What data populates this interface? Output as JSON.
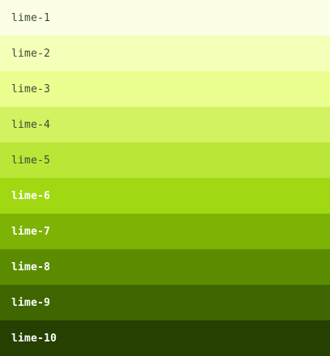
{
  "palette": {
    "swatches": [
      {
        "label": "lime-1",
        "color": "#fcffe6",
        "text_tone": "light"
      },
      {
        "label": "lime-2",
        "color": "#f4ffb8",
        "text_tone": "light"
      },
      {
        "label": "lime-3",
        "color": "#eaff8f",
        "text_tone": "light"
      },
      {
        "label": "lime-4",
        "color": "#d3f261",
        "text_tone": "light"
      },
      {
        "label": "lime-5",
        "color": "#bae637",
        "text_tone": "light"
      },
      {
        "label": "lime-6",
        "color": "#a0d911",
        "text_tone": "dark"
      },
      {
        "label": "lime-7",
        "color": "#7cb305",
        "text_tone": "dark"
      },
      {
        "label": "lime-8",
        "color": "#5b8c00",
        "text_tone": "dark"
      },
      {
        "label": "lime-9",
        "color": "#3f6600",
        "text_tone": "dark"
      },
      {
        "label": "lime-10",
        "color": "#254000",
        "text_tone": "dark"
      }
    ]
  }
}
